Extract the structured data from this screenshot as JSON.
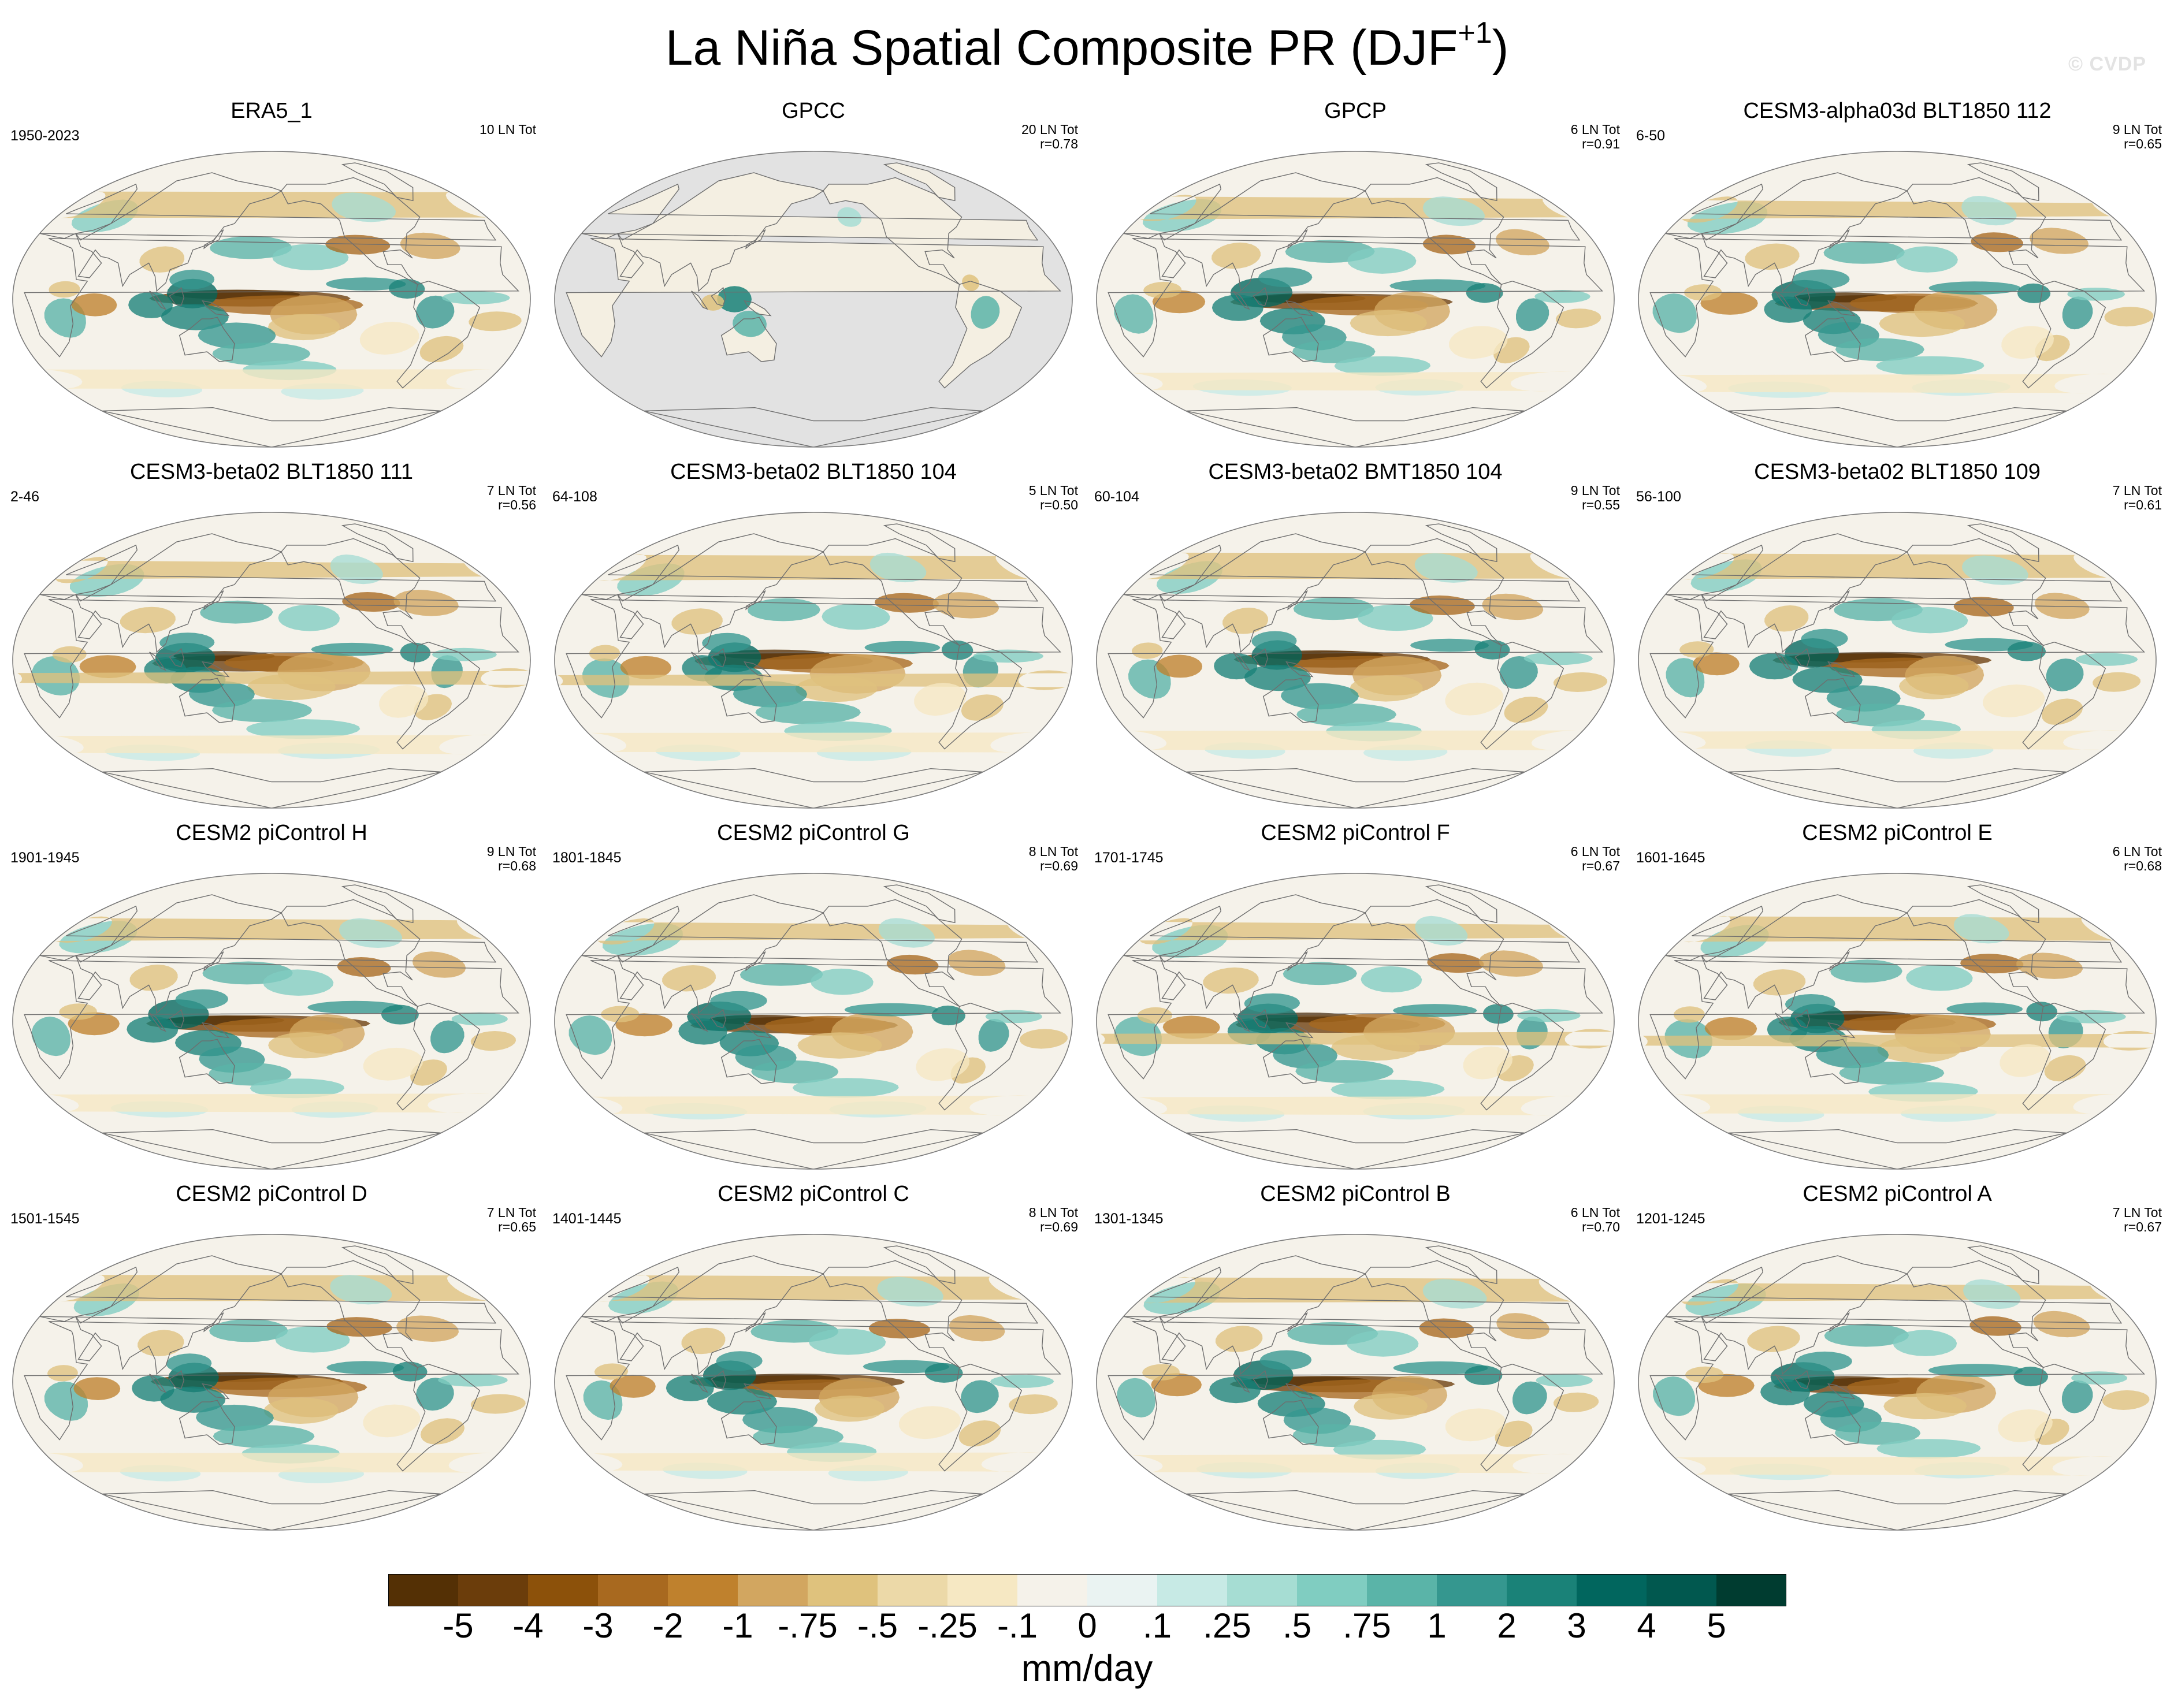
{
  "figure": {
    "title": "La Niña Spatial Composite PR (DJF",
    "title_superscript": "+1",
    "title_close": ")",
    "watermark": "© CVDP"
  },
  "panels": [
    {
      "title": "ERA5_1",
      "years": "1950-2023",
      "count": "10 LN Tot",
      "r": "",
      "domain": "global"
    },
    {
      "title": "GPCC",
      "years": "",
      "count": "20 LN Tot",
      "r": "r=0.78",
      "domain": "land"
    },
    {
      "title": "GPCP",
      "years": "",
      "count": "6 LN Tot",
      "r": "r=0.91",
      "domain": "global"
    },
    {
      "title": "CESM3-alpha03d BLT1850 112",
      "years": "6-50",
      "count": "9 LN Tot",
      "r": "r=0.65",
      "domain": "global"
    },
    {
      "title": "CESM3-beta02 BLT1850 111",
      "years": "2-46",
      "count": "7 LN Tot",
      "r": "r=0.56",
      "domain": "global"
    },
    {
      "title": "CESM3-beta02 BLT1850 104",
      "years": "64-108",
      "count": "5 LN Tot",
      "r": "r=0.50",
      "domain": "global"
    },
    {
      "title": "CESM3-beta02 BMT1850 104",
      "years": "60-104",
      "count": "9 LN Tot",
      "r": "r=0.55",
      "domain": "global"
    },
    {
      "title": "CESM3-beta02 BLT1850 109",
      "years": "56-100",
      "count": "7 LN Tot",
      "r": "r=0.61",
      "domain": "global"
    },
    {
      "title": "CESM2 piControl H",
      "years": "1901-1945",
      "count": "9 LN Tot",
      "r": "r=0.68",
      "domain": "global"
    },
    {
      "title": "CESM2 piControl G",
      "years": "1801-1845",
      "count": "8 LN Tot",
      "r": "r=0.69",
      "domain": "global"
    },
    {
      "title": "CESM2 piControl F",
      "years": "1701-1745",
      "count": "6 LN Tot",
      "r": "r=0.67",
      "domain": "global"
    },
    {
      "title": "CESM2 piControl E",
      "years": "1601-1645",
      "count": "6 LN Tot",
      "r": "r=0.68",
      "domain": "global"
    },
    {
      "title": "CESM2 piControl D",
      "years": "1501-1545",
      "count": "7 LN Tot",
      "r": "r=0.65",
      "domain": "global"
    },
    {
      "title": "CESM2 piControl C",
      "years": "1401-1445",
      "count": "8 LN Tot",
      "r": "r=0.69",
      "domain": "global"
    },
    {
      "title": "CESM2 piControl B",
      "years": "1301-1345",
      "count": "6 LN Tot",
      "r": "r=0.70",
      "domain": "global"
    },
    {
      "title": "CESM2 piControl A",
      "years": "1201-1245",
      "count": "7 LN Tot",
      "r": "r=0.67",
      "domain": "global"
    }
  ],
  "colorbar": {
    "units": "mm/day",
    "labels": [
      "-5",
      "-4",
      "-3",
      "-2",
      "-1",
      "-.75",
      "-.5",
      "-.25",
      "-.1",
      "0",
      ".1",
      ".25",
      ".5",
      ".75",
      "1",
      "2",
      "3",
      "4",
      "5"
    ],
    "colors": [
      "#543005",
      "#6b3d0b",
      "#8c510a",
      "#a8691f",
      "#bf812d",
      "#d2a660",
      "#dfc27d",
      "#ecd9a8",
      "#f6e8c3",
      "#f5f2ea",
      "#eaf3f2",
      "#c7eae5",
      "#a6ddd3",
      "#80cdc1",
      "#5ab4a8",
      "#35978f",
      "#1a8278",
      "#01665e",
      "#01584f",
      "#003c30"
    ]
  }
}
